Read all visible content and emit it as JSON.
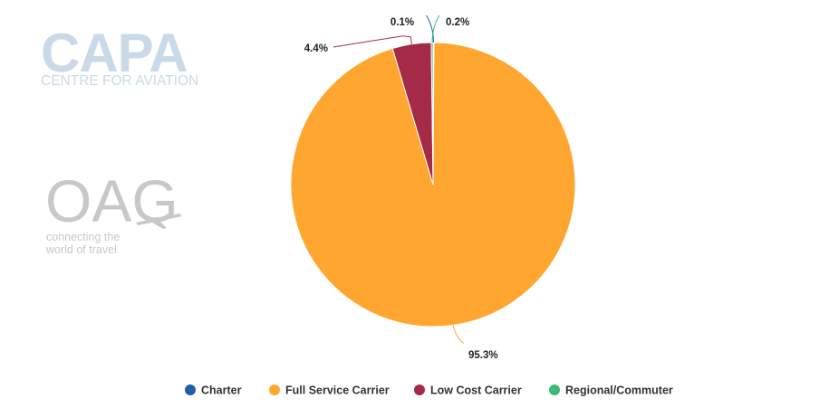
{
  "logos": {
    "capa_main": "CAPA",
    "capa_sub": "CENTRE FOR AVIATION",
    "oag_main": "OAG",
    "oag_tagline_1": "connecting the",
    "oag_tagline_2": "world of travel"
  },
  "chart_data": {
    "type": "pie",
    "start_angle_deg": 0,
    "series": [
      {
        "name": "Charter",
        "value": 0.1,
        "label": "0.1%",
        "color": "#1f5fa6"
      },
      {
        "name": "Full Service Carrier",
        "value": 95.3,
        "label": "95.3%",
        "color": "#ffa630"
      },
      {
        "name": "Low Cost Carrier",
        "value": 4.4,
        "label": "4.4%",
        "color": "#a52a48"
      },
      {
        "name": "Regional/Commuter",
        "value": 0.2,
        "label": "0.2%",
        "color": "#3cb878"
      }
    ],
    "legend_position": "bottom-center"
  }
}
